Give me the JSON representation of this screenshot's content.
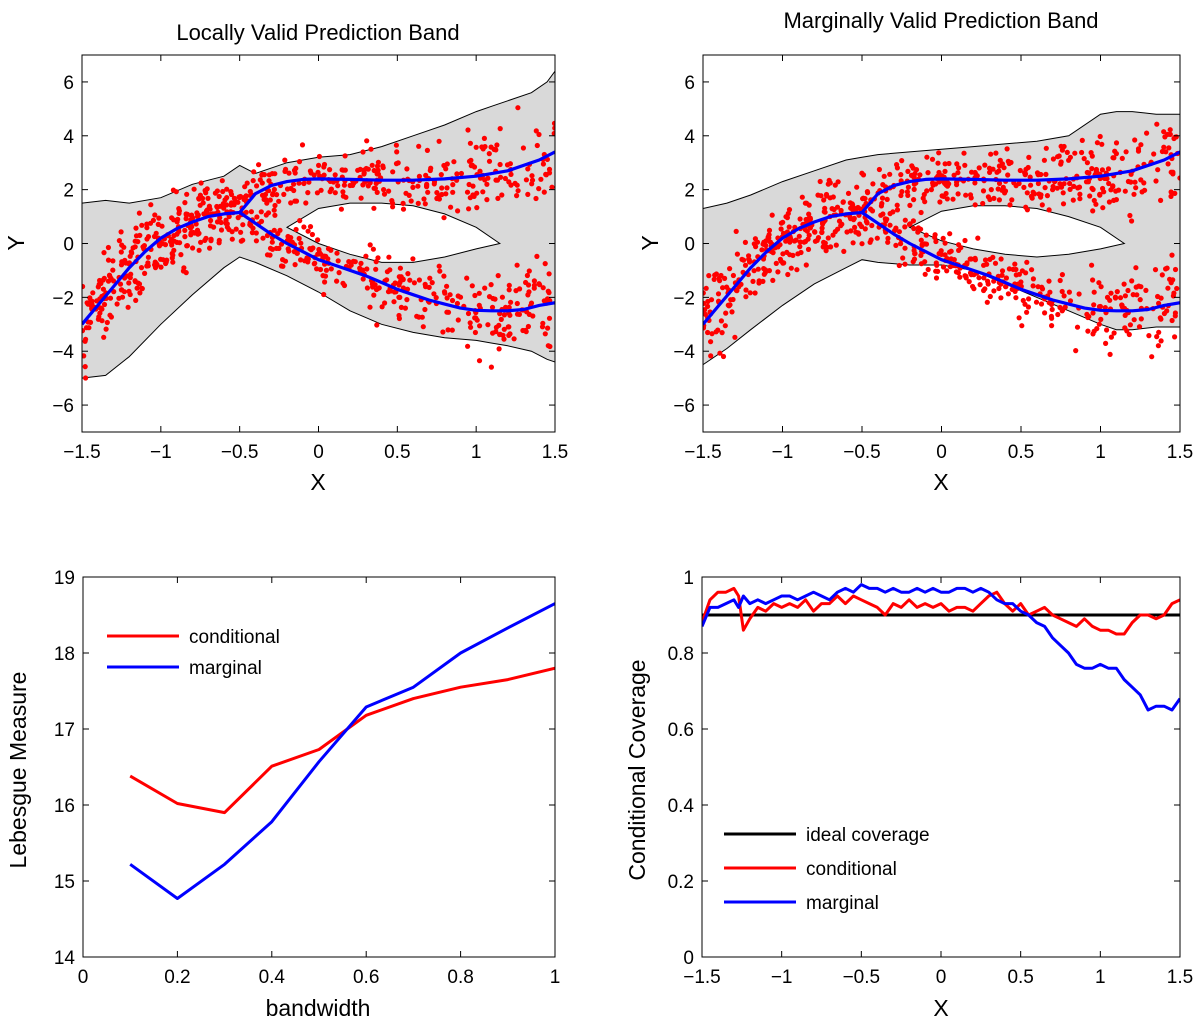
{
  "figure_bg": "#ffffff",
  "chart_data": [
    {
      "type": "scatter",
      "title": "Locally Valid Prediction Band",
      "xlabel": "X",
      "ylabel": "Y",
      "xlim": [
        -1.5,
        1.5
      ],
      "ylim": [
        -7,
        7
      ],
      "xticks": [
        "−1.5",
        "−1",
        "−0.5",
        "0",
        "0.5",
        "1",
        "1.5"
      ],
      "yticks": [
        "−6",
        "−4",
        "−2",
        "0",
        "2",
        "4",
        "6"
      ],
      "band_color": "#d9d9d9",
      "point_color": "#ff0000",
      "curve_color": "#0000ff",
      "band": {
        "x": [
          -1.5,
          -1.35,
          -1.2,
          -1.0,
          -0.8,
          -0.6,
          -0.5,
          -0.4,
          -0.2,
          0.0,
          0.2,
          0.4,
          0.6,
          0.8,
          1.0,
          1.1,
          1.2,
          1.35,
          1.45,
          1.5
        ],
        "outer_upper": [
          1.5,
          1.6,
          1.5,
          1.7,
          2.2,
          2.5,
          2.9,
          2.6,
          3.0,
          3.2,
          3.3,
          3.6,
          4.0,
          4.4,
          4.9,
          5.1,
          5.3,
          5.6,
          6.0,
          6.4
        ],
        "outer_lower": [
          -5.0,
          -4.9,
          -4.2,
          -3.0,
          -1.9,
          -0.9,
          -0.5,
          -0.7,
          -1.2,
          -1.8,
          -2.5,
          -3.0,
          -3.3,
          -3.5,
          -3.6,
          -3.7,
          -3.8,
          -4.0,
          -4.3,
          -4.4
        ],
        "hole_x": [
          -0.2,
          0.0,
          0.2,
          0.4,
          0.6,
          0.8,
          1.0,
          1.15
        ],
        "hole_upper": [
          0.6,
          1.3,
          1.5,
          1.5,
          1.4,
          1.1,
          0.6,
          0.0
        ],
        "hole_lower": [
          0.6,
          0.0,
          -0.4,
          -0.7,
          -0.7,
          -0.5,
          -0.2,
          0.0
        ]
      },
      "points_n": 900,
      "series": [
        {
          "values_x": [
            -1.5,
            -1.4,
            -1.3,
            -1.2,
            -1.1,
            -1.0,
            -0.9,
            -0.8,
            -0.7,
            -0.6,
            -0.5,
            -0.45,
            -0.4,
            -0.3,
            -0.2,
            -0.1,
            0.0,
            0.2,
            0.4,
            0.6,
            0.8,
            1.0,
            1.2,
            1.4,
            1.5
          ],
          "values_y": [
            -3.0,
            -2.3,
            -1.6,
            -0.9,
            -0.3,
            0.2,
            0.55,
            0.8,
            1.0,
            1.1,
            1.15,
            1.5,
            1.85,
            2.15,
            2.3,
            2.38,
            2.4,
            2.38,
            2.35,
            2.35,
            2.4,
            2.5,
            2.7,
            3.1,
            3.4
          ]
        },
        {
          "values_x": [
            -0.5,
            -0.4,
            -0.3,
            -0.2,
            -0.1,
            0.0,
            0.1,
            0.2,
            0.3,
            0.4,
            0.5,
            0.6,
            0.7,
            0.8,
            0.9,
            1.0,
            1.1,
            1.2,
            1.3,
            1.4,
            1.5
          ],
          "values_y": [
            1.15,
            0.75,
            0.35,
            0.0,
            -0.3,
            -0.6,
            -0.8,
            -1.0,
            -1.2,
            -1.45,
            -1.7,
            -1.9,
            -2.1,
            -2.25,
            -2.4,
            -2.48,
            -2.5,
            -2.5,
            -2.45,
            -2.3,
            -2.2
          ]
        }
      ]
    },
    {
      "type": "scatter",
      "title": "Marginally Valid Prediction Band",
      "xlabel": "X",
      "ylabel": "Y",
      "xlim": [
        -1.5,
        1.5
      ],
      "ylim": [
        -7,
        7
      ],
      "xticks": [
        "−1.5",
        "−1",
        "−0.5",
        "0",
        "0.5",
        "1",
        "1.5"
      ],
      "yticks": [
        "−6",
        "−4",
        "−2",
        "0",
        "2",
        "4",
        "6"
      ],
      "band_color": "#d9d9d9",
      "point_color": "#ff0000",
      "curve_color": "#0000ff",
      "band": {
        "x": [
          -1.5,
          -1.35,
          -1.2,
          -1.0,
          -0.8,
          -0.6,
          -0.5,
          -0.4,
          -0.2,
          0.0,
          0.2,
          0.4,
          0.6,
          0.8,
          1.0,
          1.1,
          1.2,
          1.35,
          1.45,
          1.5
        ],
        "outer_upper": [
          1.3,
          1.5,
          1.8,
          2.3,
          2.7,
          3.1,
          3.2,
          3.3,
          3.4,
          3.5,
          3.6,
          3.7,
          3.8,
          4.0,
          4.8,
          4.9,
          4.9,
          4.8,
          4.8,
          4.8
        ],
        "outer_lower": [
          -4.5,
          -3.9,
          -3.2,
          -2.3,
          -1.5,
          -0.9,
          -0.6,
          -0.7,
          -0.8,
          -0.8,
          -1.0,
          -1.5,
          -2.0,
          -2.5,
          -3.0,
          -3.2,
          -3.2,
          -3.1,
          -3.1,
          -3.1
        ],
        "hole_x": [
          -0.2,
          0.0,
          0.2,
          0.4,
          0.6,
          0.8,
          1.0,
          1.15
        ],
        "hole_upper": [
          0.6,
          1.2,
          1.4,
          1.4,
          1.3,
          1.0,
          0.6,
          0.0
        ],
        "hole_lower": [
          0.6,
          0.1,
          -0.2,
          -0.4,
          -0.5,
          -0.4,
          -0.2,
          0.0
        ]
      },
      "points_n": 900,
      "series": [
        {
          "values_x": [
            -1.5,
            -1.4,
            -1.3,
            -1.2,
            -1.1,
            -1.0,
            -0.9,
            -0.8,
            -0.7,
            -0.6,
            -0.5,
            -0.45,
            -0.4,
            -0.3,
            -0.2,
            -0.1,
            0.0,
            0.2,
            0.4,
            0.6,
            0.8,
            1.0,
            1.2,
            1.4,
            1.5
          ],
          "values_y": [
            -3.0,
            -2.3,
            -1.6,
            -0.9,
            -0.3,
            0.2,
            0.55,
            0.8,
            1.0,
            1.1,
            1.15,
            1.5,
            1.85,
            2.15,
            2.3,
            2.38,
            2.4,
            2.38,
            2.35,
            2.35,
            2.4,
            2.5,
            2.7,
            3.1,
            3.4
          ]
        },
        {
          "values_x": [
            -0.5,
            -0.4,
            -0.3,
            -0.2,
            -0.1,
            0.0,
            0.1,
            0.2,
            0.3,
            0.4,
            0.5,
            0.6,
            0.7,
            0.8,
            0.9,
            1.0,
            1.1,
            1.2,
            1.3,
            1.4,
            1.5
          ],
          "values_y": [
            1.15,
            0.75,
            0.35,
            0.0,
            -0.3,
            -0.6,
            -0.8,
            -1.0,
            -1.2,
            -1.45,
            -1.7,
            -1.9,
            -2.1,
            -2.25,
            -2.4,
            -2.48,
            -2.5,
            -2.5,
            -2.45,
            -2.3,
            -2.2
          ]
        }
      ]
    },
    {
      "type": "line",
      "title": "",
      "xlabel": "bandwidth",
      "ylabel": "Lebesgue Measure",
      "xlim": [
        0,
        1
      ],
      "ylim": [
        14,
        19
      ],
      "xticks": [
        "0",
        "0.2",
        "0.4",
        "0.6",
        "0.8",
        "1"
      ],
      "yticks": [
        "14",
        "15",
        "16",
        "17",
        "18",
        "19"
      ],
      "legend_position": "top-left",
      "x": [
        0.1,
        0.2,
        0.3,
        0.4,
        0.5,
        0.6,
        0.7,
        0.8,
        0.9,
        1.0
      ],
      "series": [
        {
          "name": "conditional",
          "color": "#ff0000",
          "values": [
            16.38,
            16.02,
            15.9,
            16.51,
            16.73,
            17.18,
            17.4,
            17.55,
            17.65,
            17.8
          ]
        },
        {
          "name": "marginal",
          "color": "#0000ff",
          "values": [
            15.22,
            14.77,
            15.22,
            15.78,
            16.57,
            17.29,
            17.55,
            18.0,
            18.33,
            18.65
          ]
        }
      ]
    },
    {
      "type": "line",
      "title": "",
      "xlabel": "X",
      "ylabel": "Conditional Coverage",
      "xlim": [
        -1.5,
        1.5
      ],
      "ylim": [
        0,
        1
      ],
      "xticks": [
        "−1.5",
        "−1",
        "−0.5",
        "0",
        "0.5",
        "1",
        "1.5"
      ],
      "yticks": [
        "0",
        "0.2",
        "0.4",
        "0.6",
        "0.8",
        "1"
      ],
      "legend_position": "bottom-left",
      "x": [
        -1.5,
        -1.45,
        -1.4,
        -1.35,
        -1.3,
        -1.27,
        -1.24,
        -1.2,
        -1.15,
        -1.1,
        -1.05,
        -1.0,
        -0.95,
        -0.9,
        -0.85,
        -0.8,
        -0.75,
        -0.7,
        -0.65,
        -0.6,
        -0.55,
        -0.5,
        -0.45,
        -0.4,
        -0.35,
        -0.3,
        -0.25,
        -0.2,
        -0.15,
        -0.1,
        -0.05,
        0.0,
        0.05,
        0.1,
        0.15,
        0.2,
        0.25,
        0.3,
        0.35,
        0.4,
        0.45,
        0.5,
        0.55,
        0.6,
        0.65,
        0.7,
        0.75,
        0.8,
        0.85,
        0.9,
        0.95,
        1.0,
        1.05,
        1.1,
        1.15,
        1.2,
        1.25,
        1.3,
        1.35,
        1.4,
        1.45,
        1.5
      ],
      "series": [
        {
          "name": "ideal coverage",
          "color": "#000000",
          "values": [
            0.9,
            0.9,
            0.9,
            0.9,
            0.9,
            0.9,
            0.9,
            0.9,
            0.9,
            0.9,
            0.9,
            0.9,
            0.9,
            0.9,
            0.9,
            0.9,
            0.9,
            0.9,
            0.9,
            0.9,
            0.9,
            0.9,
            0.9,
            0.9,
            0.9,
            0.9,
            0.9,
            0.9,
            0.9,
            0.9,
            0.9,
            0.9,
            0.9,
            0.9,
            0.9,
            0.9,
            0.9,
            0.9,
            0.9,
            0.9,
            0.9,
            0.9,
            0.9,
            0.9,
            0.9,
            0.9,
            0.9,
            0.9,
            0.9,
            0.9,
            0.9,
            0.9,
            0.9,
            0.9,
            0.9,
            0.9,
            0.9,
            0.9,
            0.9,
            0.9,
            0.9,
            0.9
          ]
        },
        {
          "name": "conditional",
          "color": "#ff0000",
          "values": [
            0.88,
            0.94,
            0.96,
            0.96,
            0.97,
            0.95,
            0.86,
            0.89,
            0.92,
            0.91,
            0.93,
            0.92,
            0.93,
            0.92,
            0.94,
            0.91,
            0.93,
            0.93,
            0.95,
            0.93,
            0.95,
            0.94,
            0.93,
            0.92,
            0.9,
            0.93,
            0.92,
            0.94,
            0.92,
            0.93,
            0.92,
            0.93,
            0.91,
            0.92,
            0.92,
            0.91,
            0.93,
            0.95,
            0.96,
            0.93,
            0.91,
            0.93,
            0.9,
            0.91,
            0.92,
            0.9,
            0.89,
            0.88,
            0.87,
            0.89,
            0.87,
            0.86,
            0.86,
            0.85,
            0.85,
            0.88,
            0.9,
            0.9,
            0.89,
            0.9,
            0.93,
            0.94
          ]
        },
        {
          "name": "marginal",
          "color": "#0000ff",
          "values": [
            0.87,
            0.92,
            0.92,
            0.93,
            0.94,
            0.92,
            0.95,
            0.93,
            0.94,
            0.93,
            0.94,
            0.95,
            0.95,
            0.94,
            0.95,
            0.96,
            0.95,
            0.94,
            0.96,
            0.97,
            0.96,
            0.98,
            0.97,
            0.97,
            0.96,
            0.97,
            0.96,
            0.96,
            0.97,
            0.96,
            0.97,
            0.96,
            0.96,
            0.97,
            0.97,
            0.96,
            0.97,
            0.96,
            0.94,
            0.93,
            0.93,
            0.91,
            0.9,
            0.88,
            0.87,
            0.84,
            0.82,
            0.8,
            0.77,
            0.76,
            0.76,
            0.77,
            0.76,
            0.76,
            0.73,
            0.71,
            0.69,
            0.65,
            0.66,
            0.66,
            0.65,
            0.68
          ]
        }
      ]
    }
  ]
}
